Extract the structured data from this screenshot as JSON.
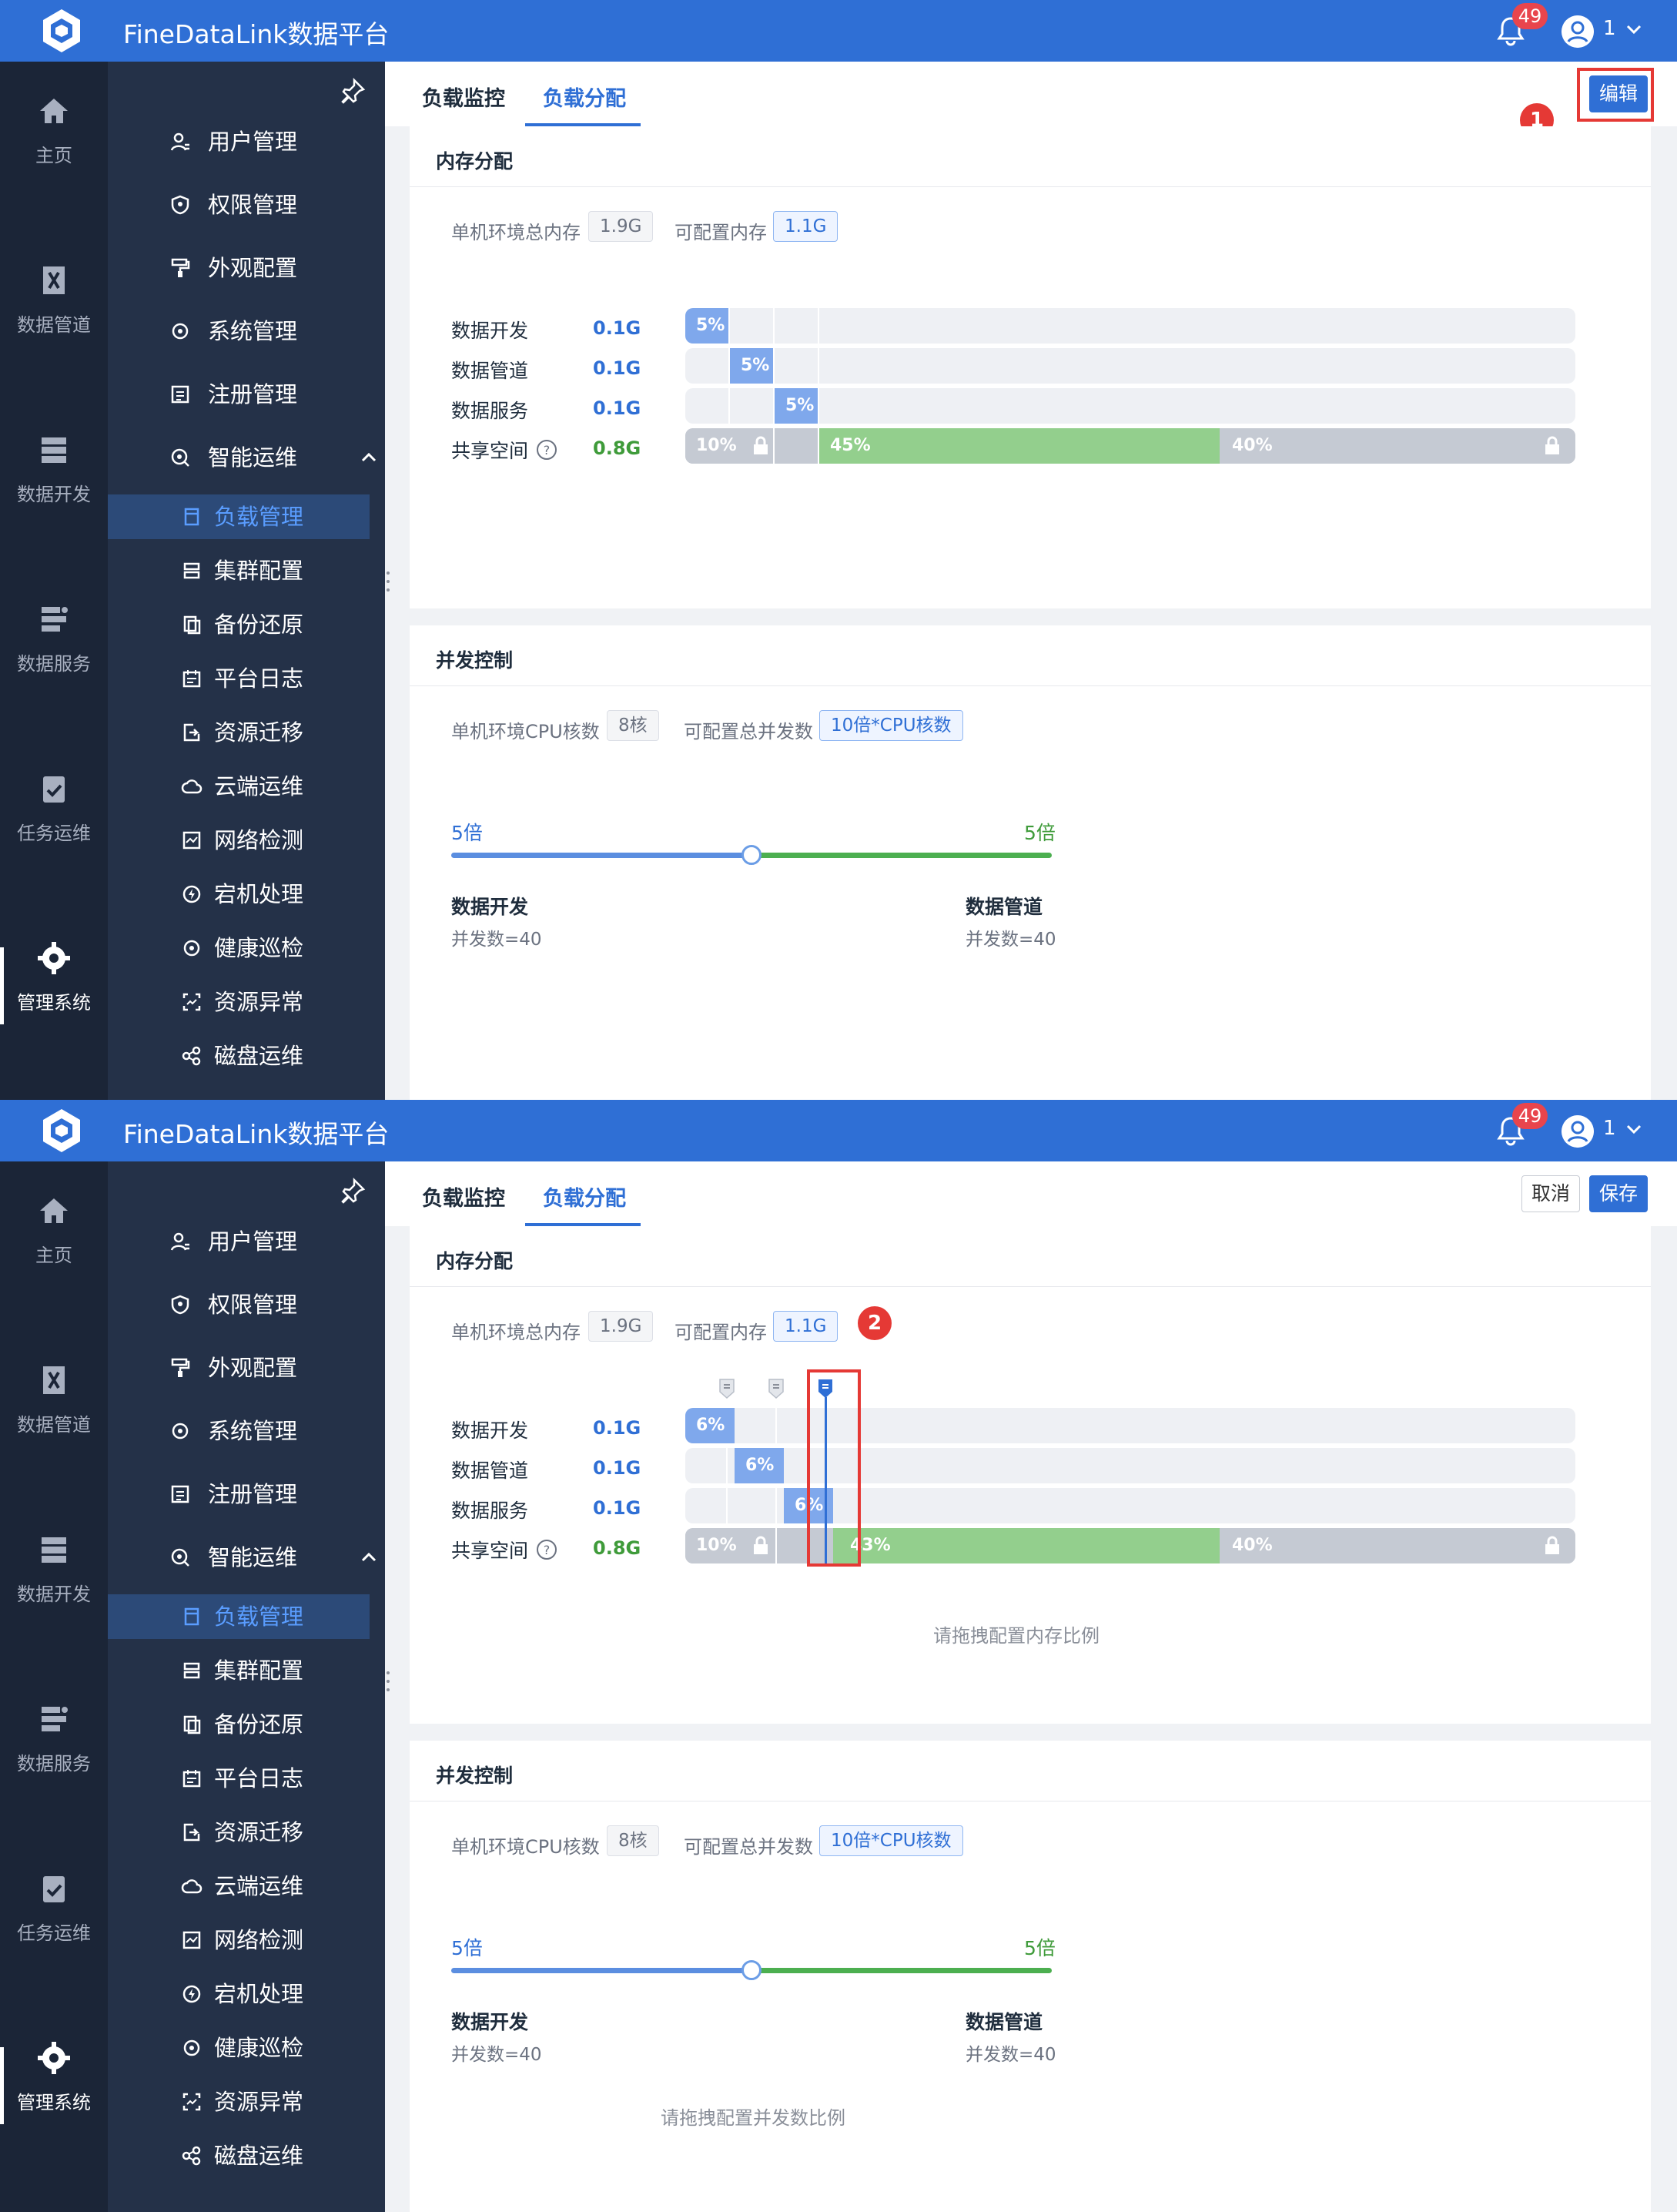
{
  "app": {
    "title": "FineDataLink数据平台",
    "notification_count": "49",
    "user_name": "1"
  },
  "nav_primary": [
    {
      "label": "主页",
      "icon": "home-icon"
    },
    {
      "label": "数据管道",
      "icon": "pipeline-icon"
    },
    {
      "label": "数据开发",
      "icon": "dev-icon"
    },
    {
      "label": "数据服务",
      "icon": "service-icon"
    },
    {
      "label": "任务运维",
      "icon": "task-icon"
    },
    {
      "label": "管理系统",
      "icon": "gear-icon"
    }
  ],
  "nav_secondary": {
    "items": [
      "用户管理",
      "权限管理",
      "外观配置",
      "系统管理",
      "注册管理",
      "智能运维"
    ],
    "sub_items": [
      "负载管理",
      "集群配置",
      "备份还原",
      "平台日志",
      "资源迁移",
      "云端运维",
      "网络检测",
      "宕机处理",
      "健康巡检",
      "资源异常",
      "磁盘运维"
    ]
  },
  "tabs": {
    "monitor": "负载监控",
    "distribution": "负载分配"
  },
  "buttons": {
    "edit": "编辑",
    "cancel": "取消",
    "save": "保存"
  },
  "memory": {
    "title": "内存分配",
    "total_label": "单机环境总内存",
    "total_value": "1.9G",
    "config_label": "可配置内存",
    "config_value": "1.1G",
    "rows": [
      {
        "label": "数据开发",
        "value": "0.1G"
      },
      {
        "label": "数据管道",
        "value": "0.1G"
      },
      {
        "label": "数据服务",
        "value": "0.1G"
      },
      {
        "label": "共享空间",
        "value": "0.8G"
      }
    ],
    "view_pcts": {
      "dev": "5%",
      "pipe": "5%",
      "svc": "5%",
      "reserved": "10%",
      "shared": "45%",
      "rest": "40%"
    },
    "edit_pcts": {
      "dev": "6%",
      "pipe": "6%",
      "svc": "6%",
      "reserved": "10%",
      "shared": "43%",
      "rest": "40%"
    },
    "hint": "请拖拽配置内存比例"
  },
  "concurrency": {
    "title": "并发控制",
    "cpu_label": "单机环境CPU核数",
    "cpu_value": "8核",
    "config_label": "可配置总并发数",
    "config_value": "10倍*CPU核数",
    "left_multiplier": "5倍",
    "right_multiplier": "5倍",
    "left_name": "数据开发",
    "left_count": "并发数=40",
    "right_name": "数据管道",
    "right_count": "并发数=40",
    "slider_position": 0.5,
    "hint": "请拖拽配置并发数比例"
  },
  "annotations": {
    "step1": "1",
    "step2": "2"
  },
  "colors": {
    "primary": "#2f6fd5",
    "green": "#3f9b3a",
    "segment_blue": "#7fa8ec",
    "segment_green": "#93cf8d",
    "segment_gray": "#c5cad3"
  }
}
